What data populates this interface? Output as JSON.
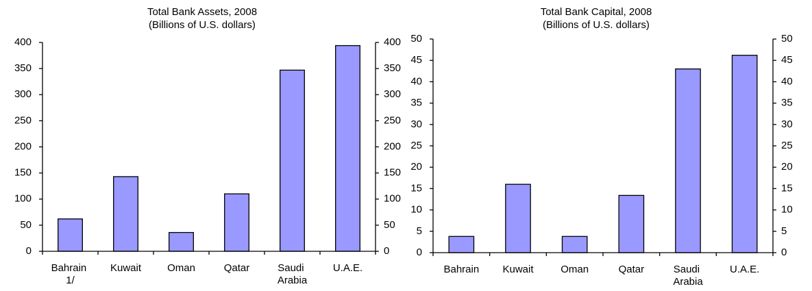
{
  "chart_data": [
    {
      "type": "bar",
      "title": "Total Bank Assets, 2008",
      "subtitle": "(Billions of U.S. dollars)",
      "categories": [
        "Bahrain 1/",
        "Kuwait",
        "Oman",
        "Qatar",
        "Saudi Arabia",
        "U.A.E."
      ],
      "values": [
        62,
        143,
        36,
        110,
        347,
        394
      ],
      "color": "#9999ff",
      "ylim": [
        0,
        400
      ],
      "yticks": [
        0,
        50,
        100,
        150,
        200,
        250,
        300,
        350,
        400
      ],
      "y2lim": [
        0,
        400
      ],
      "y2ticks": [
        0,
        50,
        100,
        150,
        200,
        250,
        300,
        350,
        400
      ]
    },
    {
      "type": "bar",
      "title": "Total Bank Capital, 2008",
      "subtitle": "(Billions of U.S. dollars)",
      "categories": [
        "Bahrain",
        "Kuwait",
        "Oman",
        "Qatar",
        "Saudi Arabia",
        "U.A.E."
      ],
      "values": [
        3.8,
        16,
        3.8,
        13.4,
        43,
        46.2
      ],
      "color": "#9999ff",
      "ylim": [
        0,
        50
      ],
      "yticks": [
        0,
        5,
        10,
        15,
        20,
        25,
        30,
        35,
        40,
        45,
        50
      ],
      "y2lim": [
        0,
        50
      ],
      "y2ticks": [
        0,
        5,
        10,
        15,
        20,
        25,
        30,
        35,
        40,
        45,
        50
      ]
    }
  ]
}
